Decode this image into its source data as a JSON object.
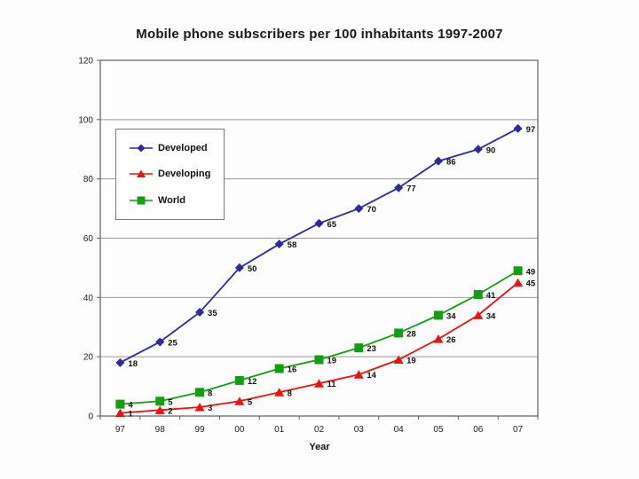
{
  "chart_data": {
    "type": "line",
    "title": "Mobile phone subscribers per 100 inhabitants 1997-2007",
    "xlabel": "Year",
    "ylabel": "",
    "categories": [
      "97",
      "98",
      "99",
      "00",
      "01",
      "02",
      "03",
      "04",
      "05",
      "06",
      "07"
    ],
    "series": [
      {
        "name": "Developed",
        "marker": "diamond",
        "color": "#2b2b9e",
        "values": [
          18,
          25,
          35,
          50,
          58,
          65,
          70,
          77,
          86,
          90,
          97
        ]
      },
      {
        "name": "Developing",
        "marker": "triangle",
        "color": "#ee1111",
        "values": [
          1,
          2,
          3,
          5,
          8,
          11,
          14,
          19,
          26,
          34,
          45
        ]
      },
      {
        "name": "World",
        "marker": "square",
        "color": "#12a012",
        "values": [
          4,
          5,
          8,
          12,
          16,
          19,
          23,
          28,
          34,
          41,
          49
        ]
      }
    ],
    "ylim": [
      0,
      120
    ],
    "y_ticks": [
      0,
      20,
      40,
      60,
      80,
      100,
      120
    ],
    "grid": "horizontal",
    "legend_position": "inside-top-left",
    "data_labels": true,
    "colors": {
      "gridline": "#9a9a9a",
      "plot_border": "#606060",
      "background": "#ffffff",
      "text": "#111111"
    }
  }
}
